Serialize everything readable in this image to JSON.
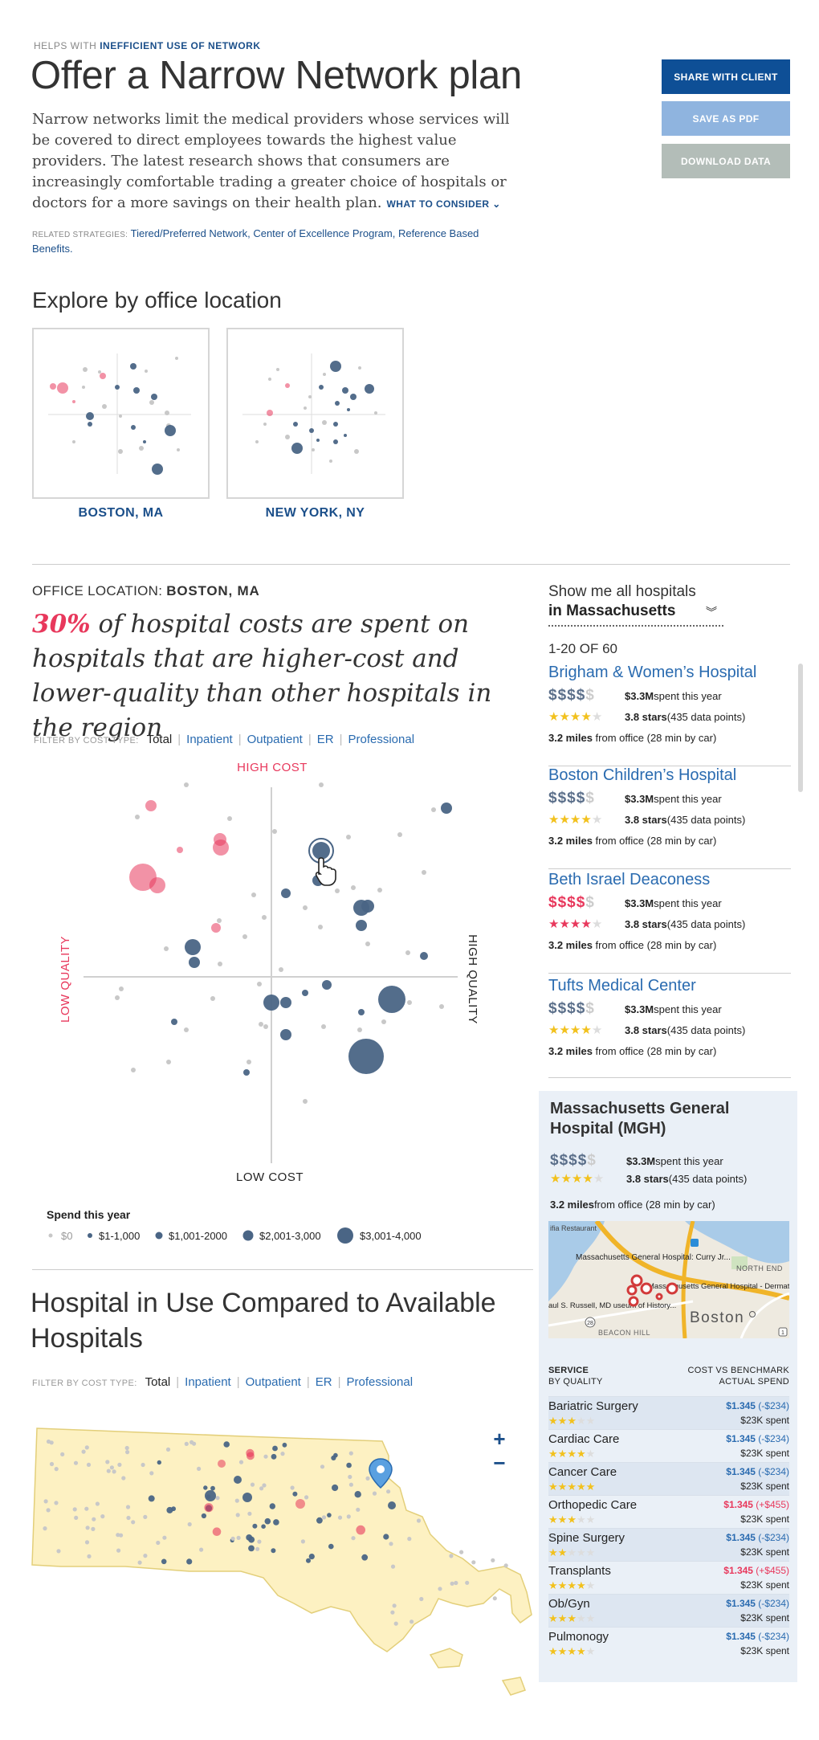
{
  "header": {
    "helps_prefix": "HELPS WITH",
    "helps_topic": "INEFFICIENT USE OF NETWORK",
    "title": "Offer a Narrow Network plan",
    "intro": "Narrow networks limit the medical providers whose services will be covered to direct employees towards the highest value providers. The latest research shows that consumers are increasingly comfortable trading a greater choice of hospitals or doctors for a more savings on their health plan.",
    "what_to_consider": "WHAT TO CONSIDER",
    "related_label": "RELATED STRATEGIES:",
    "related_links": "Tiered/Preferred Network, Center of Excellence Program, Reference Based Benefits."
  },
  "actions": {
    "share": "SHARE WITH CLIENT",
    "pdf": "SAVE AS PDF",
    "download": "DOWNLOAD DATA"
  },
  "explore": {
    "title": "Explore by office location",
    "locations": [
      "BOSTON, MA",
      "NEW YORK, NY"
    ]
  },
  "analysis": {
    "office_label": "OFFICE LOCATION:",
    "office_value": "BOSTON, MA",
    "headline_pct": "30%",
    "headline_rest": " of hospital costs are spent on hospitals that are higher-cost and lower-quality than other hospitals in the region",
    "filter_label": "FILTER BY COST TYPE:",
    "filter_options": [
      "Total",
      "Inpatient",
      "Outpatient",
      "ER",
      "Professional"
    ],
    "axis_top": "HIGH COST",
    "axis_bottom": "LOW COST",
    "axis_left": "LOW QUALITY",
    "axis_right": "HIGH QUALITY",
    "legend_title": "Spend this year",
    "legend_items": [
      "$0",
      "$1-1,000",
      "$1,001-2000",
      "$2,001-3,000",
      "$3,001-4,000"
    ]
  },
  "map_section": {
    "title": "Hospital in Use Compared to Available Hospitals",
    "filter_label": "FILTER BY COST TYPE:",
    "filter_options": [
      "Total",
      "Inpatient",
      "Outpatient",
      "ER",
      "Professional"
    ],
    "zoom_in": "+",
    "zoom_out": "−"
  },
  "panel": {
    "show_me": "Show me all hospitals",
    "region": "in Massachusetts",
    "count": "1-20 OF 60",
    "hospitals": [
      {
        "name": "Brigham & Women’s Hospital",
        "dollars": "$$$$",
        "dollars_dim": "$",
        "spent": "$3.3M",
        "spent_suffix": " spent this year",
        "stars": "3.8 stars",
        "points": " (435 data points)",
        "miles": "3.2 miles",
        "miles_suffix": " from office (28 min by car)",
        "rating": 3.5,
        "red": false
      },
      {
        "name": "Boston Children’s Hospital",
        "dollars": "$$$$",
        "dollars_dim": "$",
        "spent": "$3.3M",
        "spent_suffix": " spent this year",
        "stars": "3.8 stars",
        "points": " (435 data points)",
        "miles": "3.2 miles",
        "miles_suffix": " from office (28 min by car)",
        "rating": 4,
        "red": false
      },
      {
        "name": "Beth Israel Deaconess",
        "dollars": "$$$$",
        "dollars_dim": "$",
        "spent": "$3.3M",
        "spent_suffix": " spent this year",
        "stars": "3.8 stars",
        "points": " (435 data points)",
        "miles": "3.2 miles",
        "miles_suffix": " from office (28 min by car)",
        "rating": 3.5,
        "red": true
      },
      {
        "name": "Tufts Medical Center",
        "dollars": "$$$$",
        "dollars_dim": "$",
        "spent": "$3.3M",
        "spent_suffix": " spent this year",
        "stars": "3.8 stars",
        "points": " (435 data points)",
        "miles": "3.2 miles",
        "miles_suffix": " from office (28 min by car)",
        "rating": 4,
        "red": false
      }
    ],
    "selected": {
      "name": "Massachusetts General Hospital (MGH)",
      "dollars": "$$$$",
      "dollars_dim": "$",
      "spent": "$3.3M",
      "spent_suffix": " spent this year",
      "stars": "3.8 stars",
      "points": " (435 data points)",
      "miles": "3.2 miles",
      "miles_suffix": " from office (28 min by car)",
      "rating": 3.5,
      "map_labels": {
        "mgh": "Massachusetts General Hospital: Curry Jr...",
        "mgh_derm": "Massachusetts General Hospital - Dermatology",
        "north_end": "NORTH END",
        "beacon_hill": "BEACON HILL",
        "boston": "Boston",
        "museum": "aul S. Russell, MD useum of History...",
        "restaurant": "ifia Restaurant",
        "road_1": "28",
        "road_2": "1"
      },
      "service_head_left_1": "SERVICE",
      "service_head_left_2": "BY QUALITY",
      "service_head_right_1": "COST VS BENCHMARK",
      "service_head_right_2": "ACTUAL SPEND",
      "services": [
        {
          "name": "Bariatric Surgery",
          "rating": 3,
          "cost": "$1.345",
          "delta": " (-$234)",
          "spent": "$23K spent",
          "red": false
        },
        {
          "name": "Cardiac Care",
          "rating": 4,
          "cost": "$1.345",
          "delta": " (-$234)",
          "spent": "$23K spent",
          "red": false
        },
        {
          "name": "Cancer Care",
          "rating": 5,
          "cost": "$1.345",
          "delta": " (-$234)",
          "spent": "$23K spent",
          "red": false
        },
        {
          "name": "Orthopedic Care",
          "rating": 3,
          "cost": "$1.345",
          "delta": " (+$455)",
          "spent": "$23K spent",
          "red": true
        },
        {
          "name": "Spine Surgery",
          "rating": 2,
          "cost": "$1.345",
          "delta": " (-$234)",
          "spent": "$23K spent",
          "red": false
        },
        {
          "name": "Transplants",
          "rating": 4,
          "cost": "$1.345",
          "delta": " (+$455)",
          "spent": "$23K spent",
          "red": true
        },
        {
          "name": "Ob/Gyn",
          "rating": 3,
          "cost": "$1.345",
          "delta": " (-$234)",
          "spent": "$23K spent",
          "red": false
        },
        {
          "name": "Pulmonogy",
          "rating": 4,
          "cost": "$1.345",
          "delta": " (-$234)",
          "spent": "$23K spent",
          "red": false
        }
      ]
    }
  },
  "colors": {
    "accent_blue": "#0e4f96",
    "link_blue": "#2a6bb0",
    "pink": "#e8385c",
    "dot_blue": "#4a6585",
    "dot_gray": "#c8c8c8",
    "map_fill": "#fdf1c2"
  }
}
